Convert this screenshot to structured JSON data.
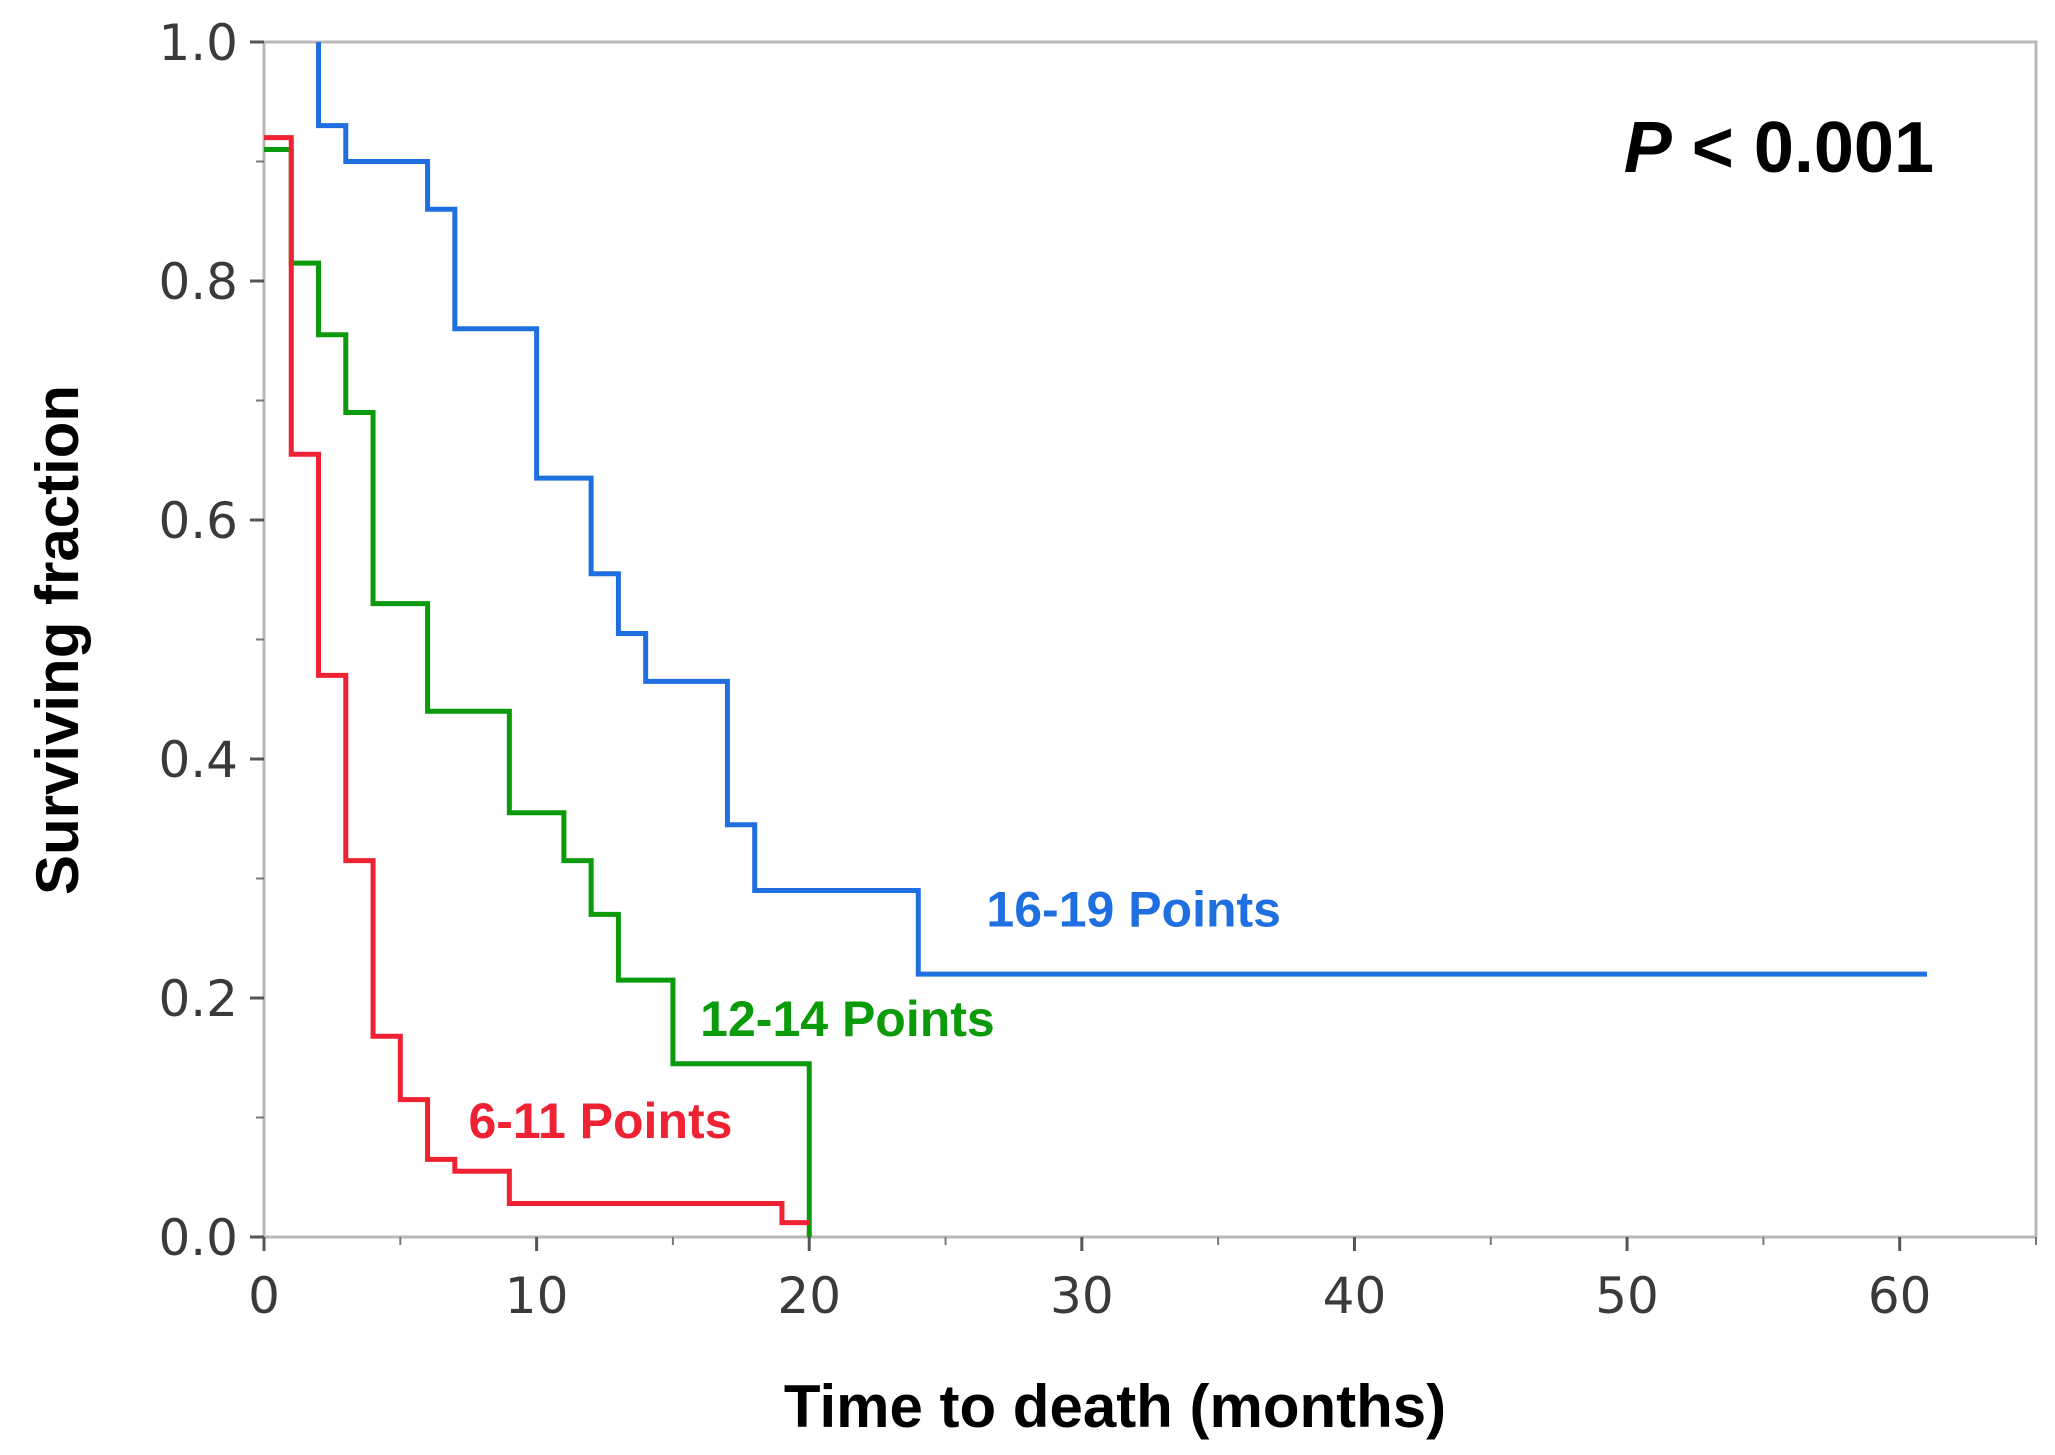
{
  "chart_data": {
    "type": "line",
    "step": true,
    "xlabel": "Time to death (months)",
    "ylabel": "Surviving fraction",
    "xlim": [
      0,
      65
    ],
    "ylim": [
      0,
      1.0
    ],
    "x_ticks": [
      0,
      10,
      20,
      30,
      40,
      50,
      60
    ],
    "x_tick_labels": [
      "0",
      "10",
      "20",
      "30",
      "40",
      "50",
      "60"
    ],
    "x_minor_ticks": [
      5,
      15,
      25,
      35,
      45,
      55,
      65
    ],
    "y_ticks": [
      0,
      0.2,
      0.4,
      0.6,
      0.8,
      1.0
    ],
    "y_tick_labels": [
      "0.0",
      "0.2",
      "0.4",
      "0.6",
      "0.8",
      "1.0"
    ],
    "y_minor_ticks": [
      0.1,
      0.3,
      0.5,
      0.7,
      0.9
    ],
    "annotation": {
      "italic": "P",
      "text": " < 0.001"
    },
    "series": [
      {
        "name": "16-19 Points",
        "color": "#1f6fe0",
        "label_position": [
          26.5,
          0.26
        ],
        "points": [
          [
            2,
            1.0
          ],
          [
            2,
            0.93
          ],
          [
            3,
            0.93
          ],
          [
            3,
            0.9
          ],
          [
            6,
            0.9
          ],
          [
            6,
            0.86
          ],
          [
            7,
            0.86
          ],
          [
            7,
            0.76
          ],
          [
            10,
            0.76
          ],
          [
            10,
            0.635
          ],
          [
            12,
            0.635
          ],
          [
            12,
            0.555
          ],
          [
            13,
            0.555
          ],
          [
            13,
            0.505
          ],
          [
            14,
            0.505
          ],
          [
            14,
            0.465
          ],
          [
            17,
            0.465
          ],
          [
            17,
            0.345
          ],
          [
            18,
            0.345
          ],
          [
            18,
            0.29
          ],
          [
            24,
            0.29
          ],
          [
            24,
            0.22
          ],
          [
            61,
            0.22
          ]
        ]
      },
      {
        "name": "12-14 Points",
        "color": "#0a9a0a",
        "label_position": [
          16,
          0.168
        ],
        "points": [
          [
            0,
            0.91
          ],
          [
            1,
            0.91
          ],
          [
            1,
            0.815
          ],
          [
            2,
            0.815
          ],
          [
            2,
            0.755
          ],
          [
            3,
            0.755
          ],
          [
            3,
            0.69
          ],
          [
            4,
            0.69
          ],
          [
            4,
            0.53
          ],
          [
            6,
            0.53
          ],
          [
            6,
            0.44
          ],
          [
            9,
            0.44
          ],
          [
            9,
            0.355
          ],
          [
            11,
            0.355
          ],
          [
            11,
            0.315
          ],
          [
            12,
            0.315
          ],
          [
            12,
            0.27
          ],
          [
            13,
            0.27
          ],
          [
            13,
            0.215
          ],
          [
            15,
            0.215
          ],
          [
            15,
            0.145
          ],
          [
            20,
            0.145
          ],
          [
            20,
            0.0
          ]
        ]
      },
      {
        "name": "6-11 Points",
        "color": "#ee2233",
        "label_position": [
          7.5,
          0.083
        ],
        "points": [
          [
            0,
            0.92
          ],
          [
            1,
            0.92
          ],
          [
            1,
            0.655
          ],
          [
            2,
            0.655
          ],
          [
            2,
            0.47
          ],
          [
            3,
            0.47
          ],
          [
            3,
            0.315
          ],
          [
            4,
            0.315
          ],
          [
            4,
            0.168
          ],
          [
            5,
            0.168
          ],
          [
            5,
            0.115
          ],
          [
            6,
            0.115
          ],
          [
            6,
            0.065
          ],
          [
            7,
            0.065
          ],
          [
            7,
            0.055
          ],
          [
            9,
            0.055
          ],
          [
            9,
            0.028
          ],
          [
            19,
            0.028
          ],
          [
            19,
            0.012
          ],
          [
            20,
            0.012
          ]
        ]
      }
    ]
  }
}
